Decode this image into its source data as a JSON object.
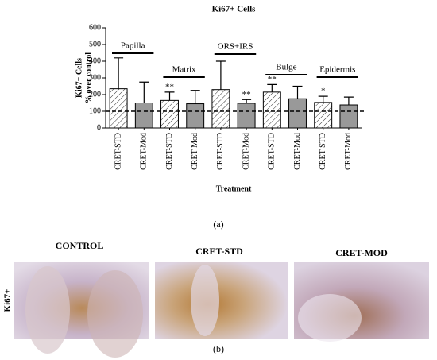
{
  "chart_data": {
    "type": "bar",
    "title": "Ki67+ Cells",
    "ylabel": [
      "Ki67+ Cells",
      "% over control"
    ],
    "xlabel": "Treatment",
    "categories": [
      "CRET-STD",
      "CRET-Mod",
      "CRET-STD",
      "CRET-Mod",
      "CRET-STD",
      "CRET-Mod",
      "CRET-STD",
      "CRET-Mod",
      "CRET-STD",
      "CRET-Mod"
    ],
    "values": [
      235,
      150,
      165,
      145,
      230,
      148,
      215,
      175,
      153,
      138
    ],
    "errors": [
      185,
      125,
      50,
      80,
      170,
      22,
      45,
      75,
      37,
      47
    ],
    "bar_styles": [
      "hatched",
      "solid",
      "hatched",
      "solid",
      "hatched",
      "solid",
      "hatched",
      "solid",
      "hatched",
      "solid"
    ],
    "color": "#999999",
    "significance": [
      null,
      null,
      "**",
      null,
      null,
      "**",
      "**",
      null,
      "*",
      null
    ],
    "groups": [
      "Papilla",
      "Matrix",
      "ORS+IRS",
      "Bulge",
      "Epidermis"
    ],
    "reference_line": 100,
    "ylim": [
      0,
      600
    ],
    "yticks": [
      0,
      100,
      200,
      300,
      400,
      500,
      600
    ]
  },
  "figure": {
    "panel_a_label": "(a)",
    "panel_b": {
      "label": "(b)",
      "row_label": "Ki67+",
      "columns": [
        "CONTROL",
        "CRET-STD",
        "CRET-MOD"
      ]
    }
  }
}
